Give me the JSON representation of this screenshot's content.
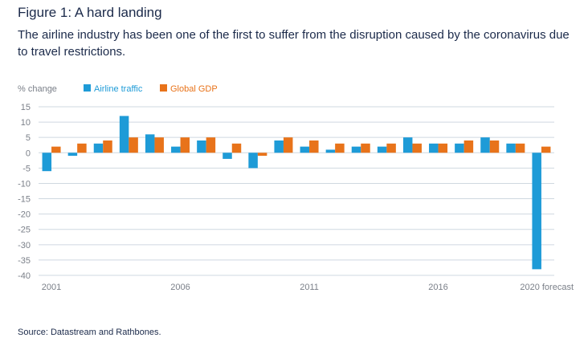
{
  "header": {
    "title": "Figure 1: A hard landing",
    "subtitle": "The airline industry has been one of the first to suffer from the disruption caused by the coronavirus due to travel restrictions."
  },
  "footer": {
    "source": "Source: Datastream and Rathbones."
  },
  "colors": {
    "airline": "#1e9bd7",
    "gdp": "#e8731a",
    "grid": "#cfd8e0",
    "text": "#7a7f88"
  },
  "chart_data": {
    "type": "bar",
    "ylabel": "% change",
    "ylim": [
      -40,
      15
    ],
    "yticks": [
      15,
      10,
      5,
      0,
      -5,
      -10,
      -15,
      -20,
      -25,
      -30,
      -35,
      -40
    ],
    "grid": true,
    "legend_position": "top-left",
    "categories": [
      "2001",
      "2002",
      "2003",
      "2004",
      "2005",
      "2006",
      "2007",
      "2008",
      "2009",
      "2010",
      "2011",
      "2012",
      "2013",
      "2014",
      "2015",
      "2016",
      "2017",
      "2018",
      "2019",
      "2020 forecast"
    ],
    "xtick_labels": [
      "2001",
      "2006",
      "2011",
      "2016",
      "2020 forecast"
    ],
    "series": [
      {
        "name": "Airline traffic",
        "values": [
          -6,
          -1,
          3,
          12,
          6,
          2,
          4,
          -2,
          -5,
          4,
          2,
          1,
          2,
          2,
          5,
          3,
          3,
          5,
          3,
          -38
        ]
      },
      {
        "name": "Global GDP",
        "values": [
          2,
          3,
          4,
          5,
          5,
          5,
          5,
          3,
          -1,
          5,
          4,
          3,
          3,
          3,
          3,
          3,
          4,
          4,
          3,
          2
        ]
      }
    ]
  }
}
